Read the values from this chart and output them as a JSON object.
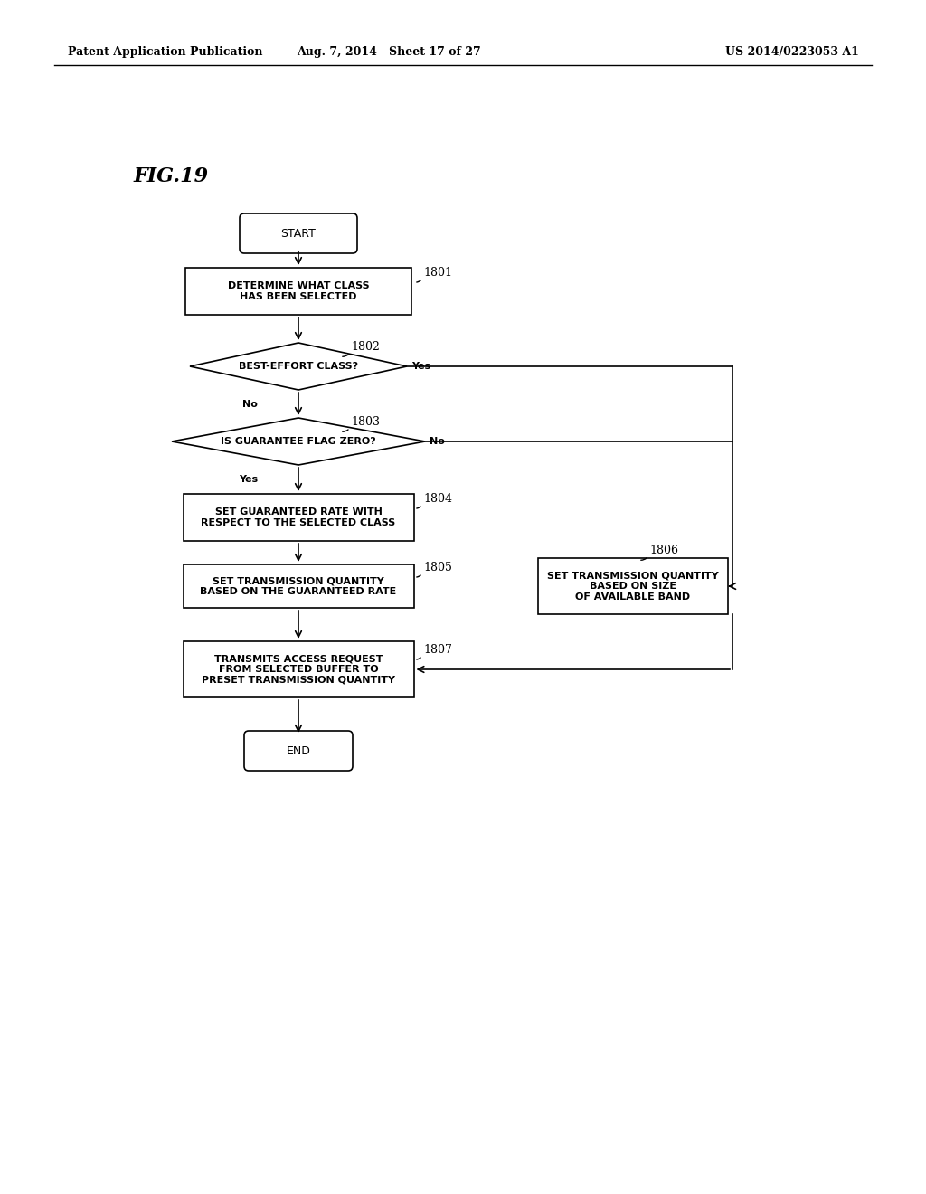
{
  "bg_color": "#ffffff",
  "header_left": "Patent Application Publication",
  "header_mid": "Aug. 7, 2014   Sheet 17 of 27",
  "header_right": "US 2014/0223053 A1",
  "fig_label": "FIG.19"
}
